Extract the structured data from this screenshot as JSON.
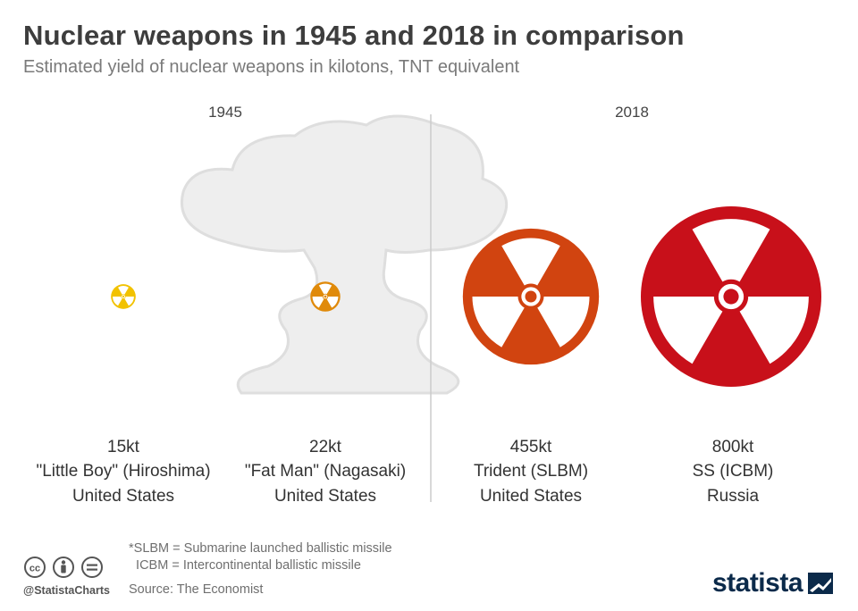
{
  "header": {
    "title": "Nuclear weapons in 1945 and 2018 in comparison",
    "subtitle": "Estimated yield of nuclear weapons in kilotons, TNT equivalent"
  },
  "chart_data": {
    "type": "bubble",
    "title": "Nuclear weapons in 1945 and 2018 in comparison",
    "subtitle": "Estimated yield of nuclear weapons in kilotons, TNT equivalent",
    "unit": "kilotons (kt)",
    "groups": [
      {
        "label": "1945",
        "items": [
          0,
          1
        ]
      },
      {
        "label": "2018",
        "items": [
          2,
          3
        ]
      }
    ],
    "items": [
      {
        "value": 15,
        "value_label": "15kt",
        "name": "\"Little Boy\" (Hiroshima)",
        "country": "United States",
        "color": "#f2c200"
      },
      {
        "value": 22,
        "value_label": "22kt",
        "name": "\"Fat Man\" (Nagasaki)",
        "country": "United States",
        "color": "#e08a0a"
      },
      {
        "value": 455,
        "value_label": "455kt",
        "name": "Trident (SLBM)",
        "country": "United States",
        "color": "#d14410"
      },
      {
        "value": 800,
        "value_label": "800kt",
        "name": "SS (ICBM)",
        "country": "Russia",
        "color": "#c8101a"
      }
    ]
  },
  "footer": {
    "footnote": "*SLBM = Submarine launched ballistic missile\n  ICBM = Intercontinental ballistic missile",
    "source": "Source: The Economist",
    "handle": "@StatistaCharts",
    "brand": "statista"
  }
}
